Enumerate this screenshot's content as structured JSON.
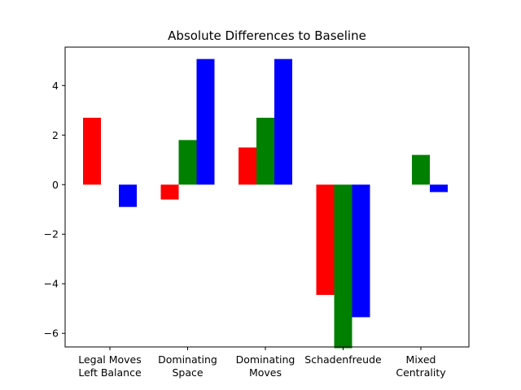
{
  "chart_data": {
    "type": "bar",
    "title": "Absolute Differences to Baseline",
    "xlabel": "",
    "ylabel": "",
    "categories": [
      [
        "Legal Moves",
        "Left Balance"
      ],
      [
        "Dominating",
        "Space"
      ],
      [
        "Dominating",
        "Moves"
      ],
      [
        "Schadenfreude"
      ],
      [
        "Mixed",
        "Centrality"
      ]
    ],
    "series": [
      {
        "color": "#ff0000",
        "values": [
          2.7,
          -0.6,
          1.5,
          -4.45,
          0
        ]
      },
      {
        "color": "#008000",
        "values": [
          0,
          1.8,
          2.7,
          -6.6,
          1.2
        ]
      },
      {
        "color": "#0000ff",
        "values": [
          -0.9,
          5.07,
          5.07,
          -5.35,
          -0.3
        ]
      }
    ],
    "ylim": [
      -6.55,
      5.55
    ],
    "yticks": [
      -6,
      -4,
      -2,
      0,
      2,
      4
    ],
    "grid": false,
    "legend": "none"
  }
}
